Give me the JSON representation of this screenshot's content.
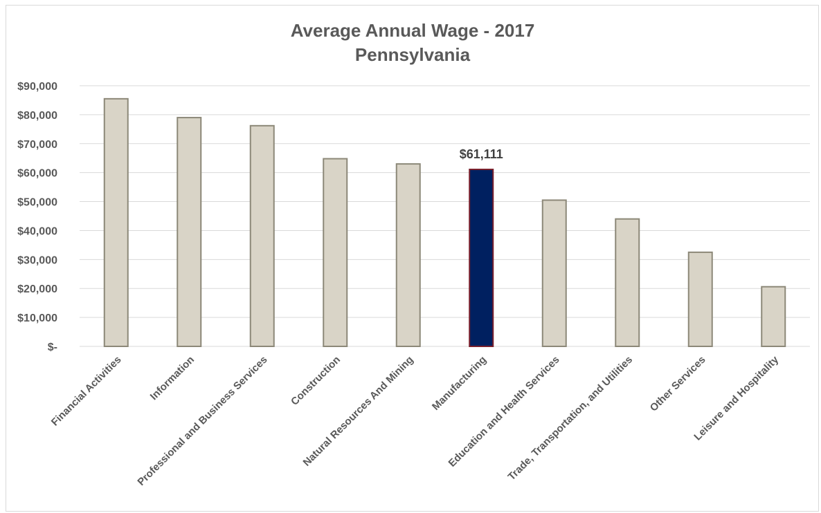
{
  "chart_data": {
    "type": "bar",
    "title": "Average Annual Wage - 2017",
    "subtitle": "Pennsylvania",
    "categories": [
      "Financial Activities",
      "Information",
      "Professional and Business Services",
      "Construction",
      "Natural Resources And Mining",
      "Manufacturing",
      "Education and Health Services",
      "Trade, Transportation, and Utilities",
      "Other Services",
      "Leisure and Hospitality"
    ],
    "values": [
      85500,
      79000,
      76200,
      64800,
      63000,
      61111,
      50500,
      44000,
      32500,
      20600
    ],
    "highlight_index": 5,
    "data_labels": {
      "5": "$61,111"
    },
    "ylim": [
      0,
      90000
    ],
    "yticks": [
      0,
      10000,
      20000,
      30000,
      40000,
      50000,
      60000,
      70000,
      80000,
      90000
    ],
    "ytick_labels": [
      "$-",
      "$10,000",
      "$20,000",
      "$30,000",
      "$40,000",
      "$50,000",
      "$60,000",
      "$70,000",
      "$80,000",
      "$90,000"
    ],
    "xlabel": "",
    "ylabel": "",
    "grid": true,
    "legend": "none",
    "colors": {
      "bar_fill": "#d9d4c7",
      "bar_stroke": "#8c8878",
      "highlight_fill": "#002060",
      "highlight_stroke": "#7a1f2b",
      "gridline": "#d9d9d9",
      "text": "#595959"
    }
  }
}
